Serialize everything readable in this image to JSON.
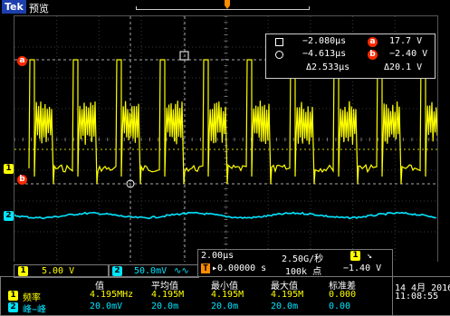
{
  "header": {
    "logo": "Tek",
    "state": "预览"
  },
  "markers": {
    "a": "a",
    "b": "b",
    "ch1": "1",
    "ch2": "2",
    "trigger": "T"
  },
  "cursor": {
    "t1": "−2.080µs",
    "t2": "−4.613µs",
    "dt": "Δ2.533µs",
    "a_label": "a",
    "va": "17.7 V",
    "b_label": "b",
    "vb": "−2.40 V",
    "dv": "Δ20.1 V"
  },
  "channels": {
    "ch1": {
      "num": "1",
      "scale": "5.00 V"
    },
    "ch2": {
      "num": "2",
      "scale": "50.0mV",
      "bw": "∿∿"
    }
  },
  "timebase": {
    "scale": "2.00µs",
    "rate": "2.50G/秒",
    "trig_ch": "1",
    "trig_slope": "↘",
    "delay": "▸0.00000 s",
    "points": "100k 点",
    "trig_level": "−1.40 V"
  },
  "measurements": {
    "headers": [
      "值",
      "平均值",
      "最小值",
      "最大值",
      "标准差"
    ],
    "rows": [
      {
        "ch": "1",
        "name": "频率",
        "values": [
          "4.195MHz",
          "4.195M",
          "4.195M",
          "4.195M",
          "0.000"
        ]
      },
      {
        "ch": "2",
        "name": "峰−峰",
        "values": [
          "20.0mV",
          "20.0m",
          "20.0m",
          "20.0m",
          "0.00"
        ]
      }
    ]
  },
  "datetime": {
    "date": "14 4月 2016",
    "time": "11:08:55"
  },
  "colors": {
    "ch1": "#ffff00",
    "ch2": "#00e5ff",
    "cursor": "#ffffff",
    "ref": "#ff2a00"
  }
}
